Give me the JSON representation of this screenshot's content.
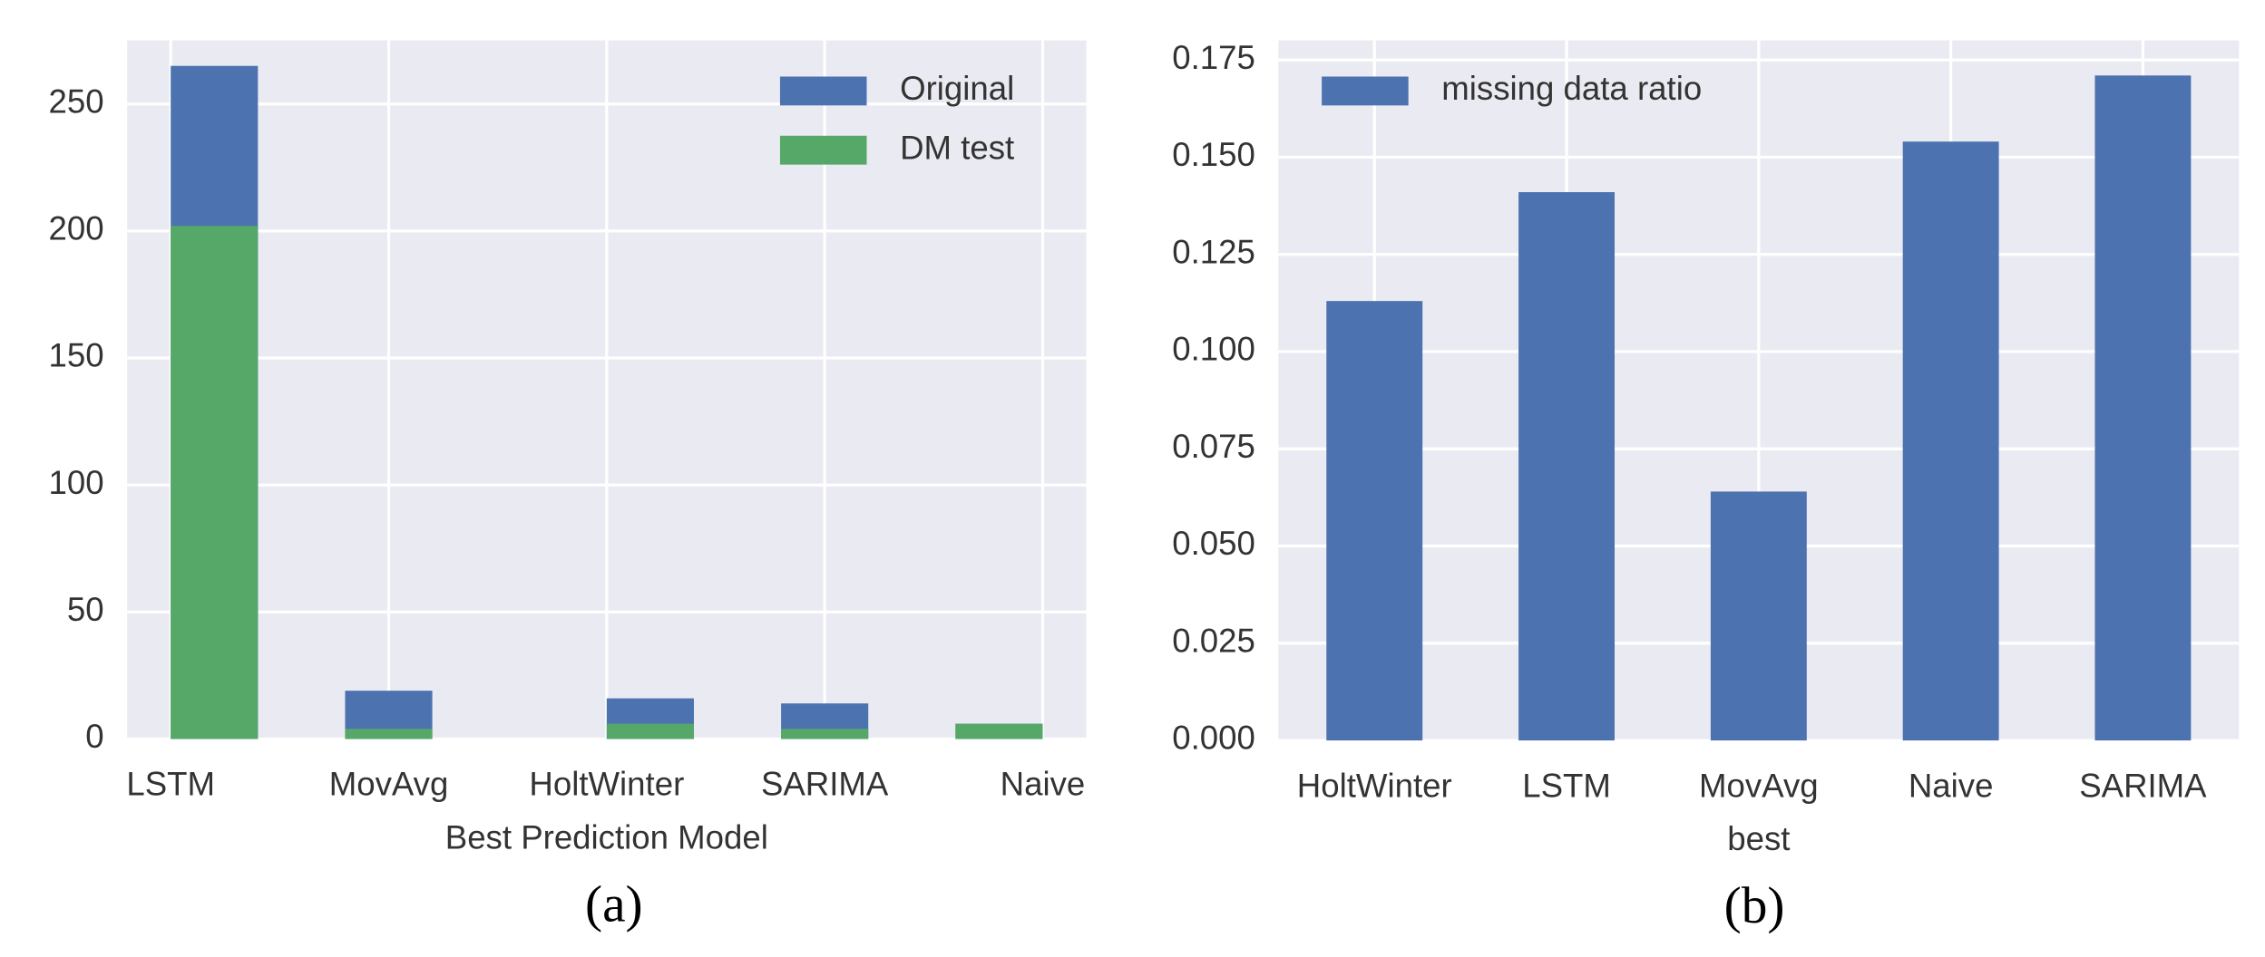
{
  "chart_data": [
    {
      "type": "histogram",
      "xlabel": "Best Prediction Model",
      "caption": "(a)",
      "bins": [
        0,
        0.4,
        0.8,
        1.2,
        1.6,
        2.0,
        2.4,
        2.8,
        3.2,
        3.6,
        4.0
      ],
      "series": [
        {
          "name": "Original",
          "color": "#4c72b0",
          "values": [
            265,
            0,
            19,
            0,
            0,
            16,
            0,
            14,
            0,
            6
          ]
        },
        {
          "name": "DM test",
          "color": "#55a868",
          "values": [
            202,
            0,
            4,
            0,
            0,
            6,
            0,
            4,
            0,
            6
          ]
        }
      ],
      "xlim": [
        -0.2,
        4.2
      ],
      "xticks": [
        {
          "value": 0,
          "label": "LSTM"
        },
        {
          "value": 1,
          "label": "MovAvg"
        },
        {
          "value": 2,
          "label": "HoltWinter"
        },
        {
          "value": 3,
          "label": "SARIMA"
        },
        {
          "value": 4,
          "label": "Naive"
        }
      ],
      "ylim": [
        0,
        275
      ],
      "yticks": [
        0,
        50,
        100,
        150,
        200,
        250
      ],
      "grid": true,
      "legend": "upper right"
    },
    {
      "type": "bar",
      "xlabel": "best",
      "caption": "(b)",
      "categories": [
        "HoltWinter",
        "LSTM",
        "MovAvg",
        "Naive",
        "SARIMA"
      ],
      "series": [
        {
          "name": "missing data ratio",
          "color": "#4c72b0",
          "values": [
            0.113,
            0.141,
            0.064,
            0.154,
            0.171
          ]
        }
      ],
      "ylim": [
        0,
        0.18
      ],
      "yticks": [
        {
          "value": 0,
          "label": "0.000"
        },
        {
          "value": 0.025,
          "label": "0.025"
        },
        {
          "value": 0.05,
          "label": "0.050"
        },
        {
          "value": 0.075,
          "label": "0.075"
        },
        {
          "value": 0.1,
          "label": "0.100"
        },
        {
          "value": 0.125,
          "label": "0.125"
        },
        {
          "value": 0.15,
          "label": "0.150"
        },
        {
          "value": 0.175,
          "label": "0.175"
        }
      ],
      "grid": true,
      "legend": "upper left"
    }
  ]
}
